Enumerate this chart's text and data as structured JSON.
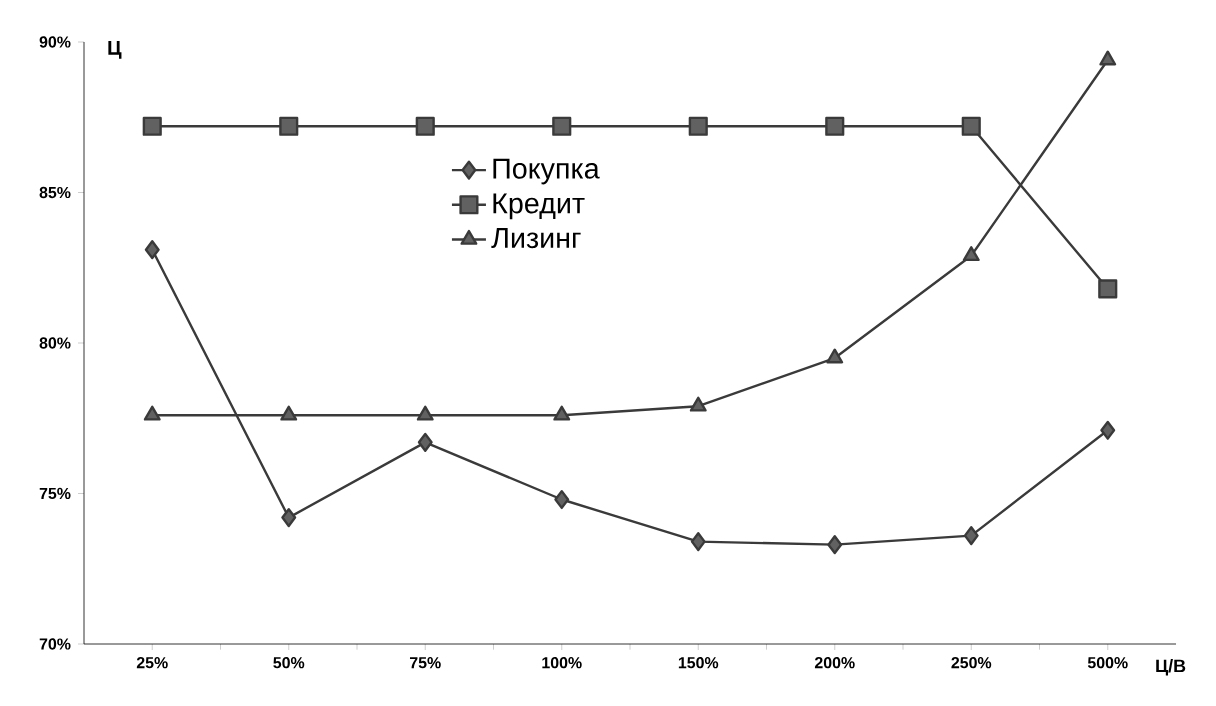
{
  "chart_data": {
    "type": "line",
    "xlabel": "Ц/В",
    "ylabel": "Ц",
    "categories": [
      "25%",
      "50%",
      "75%",
      "100%",
      "150%",
      "200%",
      "250%",
      "500%"
    ],
    "ylim": [
      70,
      90
    ],
    "yticks": [
      {
        "value": 70,
        "label": "70%"
      },
      {
        "value": 75,
        "label": "75%"
      },
      {
        "value": 80,
        "label": "80%"
      },
      {
        "value": 85,
        "label": "85%"
      },
      {
        "value": 90,
        "label": "90%"
      }
    ],
    "legend": "top",
    "grid": false,
    "line_style": "solid",
    "series": [
      {
        "name": "Покупка",
        "color": "#3a3a3a",
        "marker": "diamond",
        "values": [
          83.1,
          74.2,
          76.7,
          74.8,
          73.4,
          73.3,
          73.6,
          77.1
        ]
      },
      {
        "name": "Кредит",
        "color": "#3a3a3a",
        "marker": "square",
        "values": [
          87.2,
          87.2,
          87.2,
          87.2,
          87.2,
          87.2,
          87.2,
          81.8
        ]
      },
      {
        "name": "Лизинг",
        "color": "#3a3a3a",
        "marker": "triangle",
        "values": [
          77.6,
          77.6,
          77.6,
          77.6,
          77.9,
          79.5,
          82.9,
          89.4
        ]
      }
    ]
  }
}
